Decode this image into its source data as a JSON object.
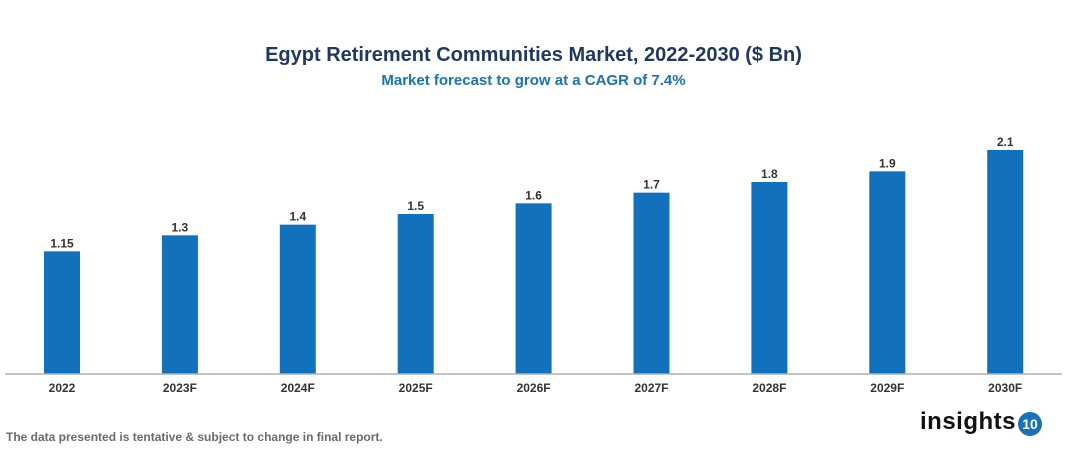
{
  "chart_data": {
    "type": "bar",
    "title": "Egypt Retirement Communities Market, 2022-2030 ($ Bn)",
    "subtitle": "Market forecast to grow at a CAGR of 7.4%",
    "categories": [
      "2022",
      "2023F",
      "2024F",
      "2025F",
      "2026F",
      "2027F",
      "2028F",
      "2029F",
      "2030F"
    ],
    "values": [
      1.15,
      1.3,
      1.4,
      1.5,
      1.6,
      1.7,
      1.8,
      1.9,
      2.1
    ],
    "data_labels": [
      "1.15",
      "1.3",
      "1.4",
      "1.5",
      "1.6",
      "1.7",
      "1.8",
      "1.9",
      "2.1"
    ],
    "xlabel": "",
    "ylabel": "",
    "ylim": [
      0,
      2.1
    ],
    "grid": false,
    "legend": "none",
    "bar_color": "#1271BD"
  },
  "footnote": "The data presented is tentative & subject to change in final report.",
  "logo": {
    "text": "insights",
    "badge": "10"
  }
}
